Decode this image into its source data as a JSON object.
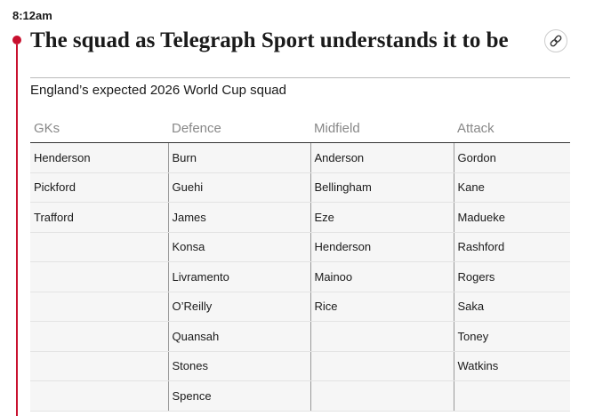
{
  "time": "8:12am",
  "headline": "The squad as Telegraph Sport understands it to be",
  "subtitle": "England’s expected 2026 World Cup squad",
  "table": {
    "columns": [
      {
        "heading": "GKs",
        "players": [
          "Henderson",
          "Pickford",
          "Trafford"
        ]
      },
      {
        "heading": "Defence",
        "players": [
          "Burn",
          "Guehi",
          "James",
          "Konsa",
          "Livramento",
          "O’Reilly",
          "Quansah",
          "Stones",
          "Spence"
        ]
      },
      {
        "heading": "Midfield",
        "players": [
          "Anderson",
          "Bellingham",
          "Eze",
          "Henderson",
          "Mainoo",
          "Rice"
        ]
      },
      {
        "heading": "Attack",
        "players": [
          "Gordon",
          "Kane",
          "Madueke",
          "Rashford",
          "Rogers",
          "Saka",
          "Toney",
          "Watkins"
        ]
      }
    ]
  }
}
